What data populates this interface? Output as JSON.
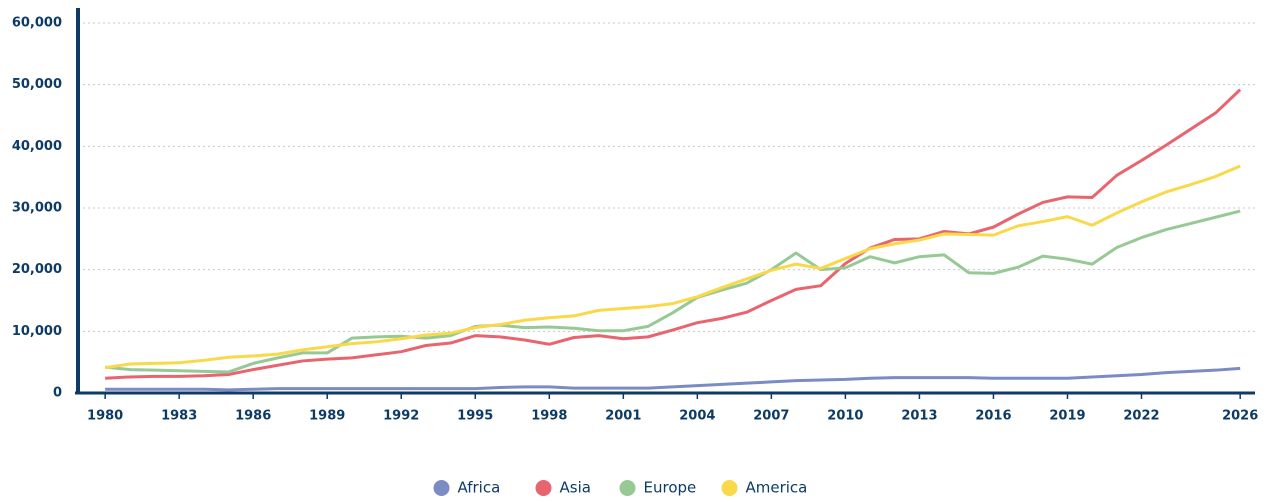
{
  "chart_data": {
    "type": "line",
    "x": [
      1980,
      1981,
      1982,
      1983,
      1984,
      1985,
      1986,
      1987,
      1988,
      1989,
      1990,
      1991,
      1992,
      1993,
      1994,
      1995,
      1996,
      1997,
      1998,
      1999,
      2000,
      2001,
      2002,
      2003,
      2004,
      2005,
      2006,
      2007,
      2008,
      2009,
      2010,
      2011,
      2012,
      2013,
      2014,
      2015,
      2016,
      2017,
      2018,
      2019,
      2020,
      2021,
      2022,
      2023,
      2024,
      2025,
      2026
    ],
    "series": [
      {
        "name": "Africa",
        "color": "#7b8cc4",
        "values": [
          600,
          600,
          600,
          600,
          600,
          500,
          600,
          700,
          700,
          700,
          700,
          700,
          700,
          700,
          700,
          700,
          900,
          1000,
          1000,
          800,
          800,
          800,
          800,
          1000,
          1200,
          1400,
          1600,
          1800,
          2000,
          2100,
          2200,
          2400,
          2500,
          2500,
          2500,
          2500,
          2400,
          2400,
          2400,
          2400,
          2600,
          2800,
          3000,
          3300,
          3500,
          3700,
          4000
        ]
      },
      {
        "name": "Asia",
        "color": "#e8646e",
        "values": [
          2400,
          2600,
          2700,
          2700,
          2800,
          3000,
          3800,
          4500,
          5200,
          5500,
          5700,
          6200,
          6700,
          7700,
          8100,
          9300,
          9100,
          8600,
          7900,
          9000,
          9300,
          8800,
          9100,
          10200,
          11400,
          12100,
          13100,
          15000,
          16800,
          17400,
          21000,
          23500,
          24900,
          25000,
          26200,
          25800,
          26900,
          29000,
          30900,
          31800,
          31700,
          35300,
          37700,
          40200,
          42800,
          45400,
          49200
        ]
      },
      {
        "name": "Europe",
        "color": "#97c995",
        "values": [
          4200,
          3800,
          3700,
          3600,
          3500,
          3400,
          4800,
          5700,
          6500,
          6500,
          8900,
          9100,
          9200,
          8900,
          9300,
          10800,
          11000,
          10600,
          10700,
          10500,
          10100,
          10100,
          10800,
          13000,
          15500,
          16700,
          17800,
          20000,
          22700,
          20000,
          20300,
          22100,
          21100,
          22100,
          22400,
          19500,
          19400,
          20400,
          22200,
          21700,
          20900,
          23600,
          25200,
          26500,
          27500,
          28500,
          29500
        ]
      },
      {
        "name": "America",
        "color": "#f9d849",
        "values": [
          4100,
          4700,
          4800,
          4900,
          5300,
          5800,
          6000,
          6300,
          7000,
          7500,
          8000,
          8300,
          8800,
          9400,
          9700,
          10600,
          11100,
          11800,
          12200,
          12500,
          13400,
          13700,
          14000,
          14500,
          15600,
          17100,
          18500,
          19900,
          20900,
          20200,
          21800,
          23400,
          24200,
          24800,
          25800,
          25700,
          25600,
          27100,
          27800,
          28600,
          27200,
          29200,
          31000,
          32600,
          33800,
          35100,
          36800
        ]
      }
    ],
    "xlim": [
      1978.9,
      2026.6
    ],
    "xticks": [
      1980,
      1983,
      1986,
      1989,
      1992,
      1995,
      1998,
      2001,
      2004,
      2007,
      2010,
      2013,
      2016,
      2019,
      2022,
      2026
    ],
    "ylim": [
      0,
      60000
    ],
    "yticks": [
      0,
      {
        "value": 10000,
        "label": "10,000"
      },
      {
        "value": 20000,
        "label": "20,000"
      },
      {
        "value": 30000,
        "label": "30,000"
      },
      {
        "value": 40000,
        "label": "40,000"
      },
      {
        "value": 50000,
        "label": "50,000"
      },
      {
        "value": 60000,
        "label": "60,000"
      }
    ],
    "grid": true,
    "legend": "bottom"
  }
}
